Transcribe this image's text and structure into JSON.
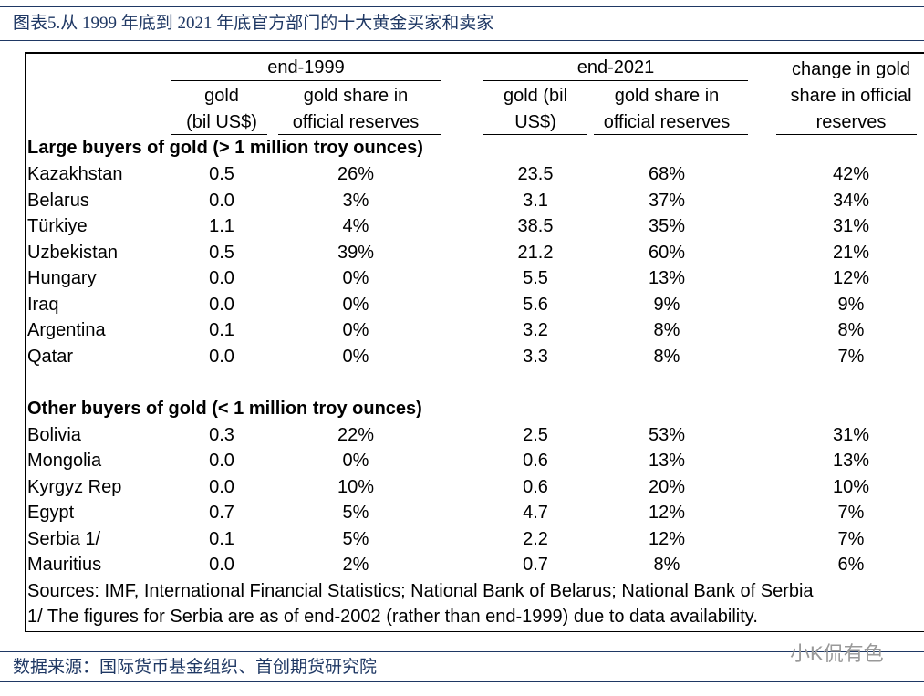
{
  "header": {
    "title": "图表5.从 1999 年底到 2021 年底官方部门的十大黄金买家和卖家"
  },
  "table": {
    "column_groups": [
      "end-1999",
      "end-2021"
    ],
    "columns": [
      [
        "gold",
        "(bil US$)"
      ],
      [
        "gold share in",
        "official reserves"
      ],
      [
        "gold (bil",
        "US$)"
      ],
      [
        "gold share in",
        "official reserves"
      ],
      [
        "change in gold",
        "share in official",
        "reserves"
      ]
    ],
    "sections": [
      {
        "title": "Large buyers of gold (> 1 million troy ounces)",
        "rows": [
          [
            "Kazakhstan",
            "0.5",
            "26%",
            "23.5",
            "68%",
            "42%"
          ],
          [
            "Belarus",
            "0.0",
            "3%",
            "3.1",
            "37%",
            "34%"
          ],
          [
            "Türkiye",
            "1.1",
            "4%",
            "38.5",
            "35%",
            "31%"
          ],
          [
            "Uzbekistan",
            "0.5",
            "39%",
            "21.2",
            "60%",
            "21%"
          ],
          [
            "Hungary",
            "0.0",
            "0%",
            "5.5",
            "13%",
            "12%"
          ],
          [
            "Iraq",
            "0.0",
            "0%",
            "5.6",
            "9%",
            "9%"
          ],
          [
            "Argentina",
            "0.1",
            "0%",
            "3.2",
            "8%",
            "8%"
          ],
          [
            "Qatar",
            "0.0",
            "0%",
            "3.3",
            "8%",
            "7%"
          ]
        ]
      },
      {
        "title": "Other buyers of gold (< 1 million troy ounces)",
        "rows": [
          [
            "Bolivia",
            "0.3",
            "22%",
            "2.5",
            "53%",
            "31%"
          ],
          [
            "Mongolia",
            "0.0",
            "0%",
            "0.6",
            "13%",
            "13%"
          ],
          [
            "Kyrgyz Rep",
            "0.0",
            "10%",
            "0.6",
            "20%",
            "10%"
          ],
          [
            "Egypt",
            "0.7",
            "5%",
            "4.7",
            "12%",
            "7%"
          ],
          [
            "Serbia 1/",
            "0.1",
            "5%",
            "2.2",
            "12%",
            "7%"
          ],
          [
            "Mauritius",
            "0.0",
            "2%",
            "0.7",
            "8%",
            "6%"
          ]
        ]
      }
    ],
    "sources": "Sources: IMF, International Financial Statistics; National Bank of Belarus; National Bank of Serbia",
    "note": "1/ The figures for Serbia are as of end-2002 (rather than end-1999) due to data availability."
  },
  "footer": {
    "source": "数据来源：国际货币基金组织、首创期货研究院",
    "watermark": "小K侃有色"
  }
}
